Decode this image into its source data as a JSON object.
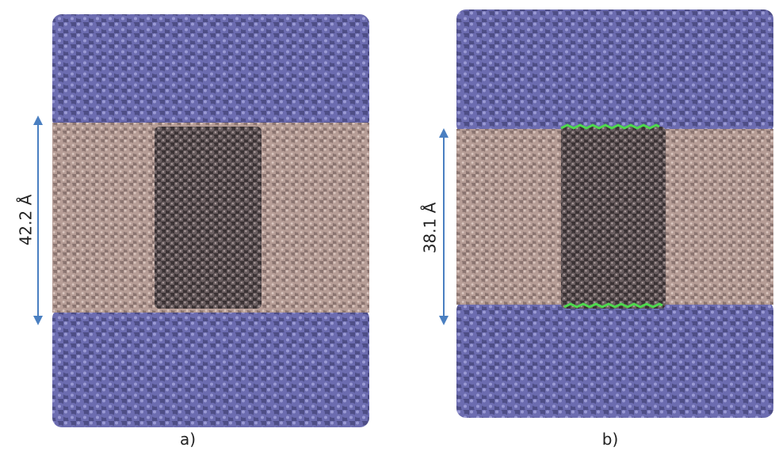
{
  "panels": [
    {
      "label": "a)",
      "dimension": "42.2 Å"
    },
    {
      "label": "b)",
      "dimension": "38.1 Å"
    }
  ]
}
